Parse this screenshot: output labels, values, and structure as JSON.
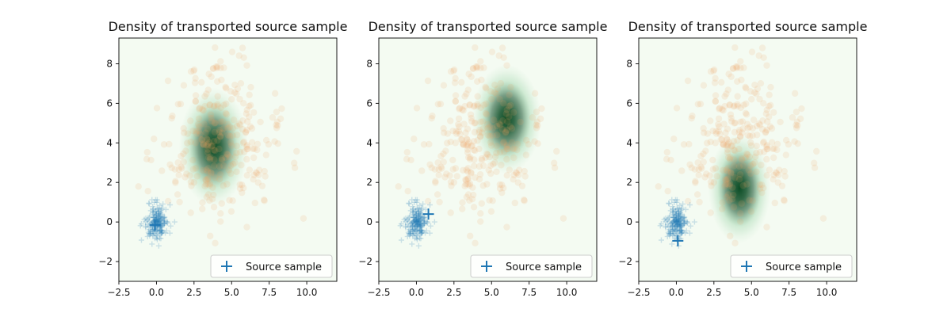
{
  "colors": {
    "background": "#ffffff",
    "plot_bg": "#f4fbf2",
    "density_dark": "#00441b",
    "target_points": "#f4a460",
    "source_points": "#1f77b4",
    "highlight_marker": "#1f77b4"
  },
  "chart_data": [
    {
      "type": "scatter",
      "title": "Density of transported source sample",
      "xlim": [
        -2.5,
        12
      ],
      "ylim": [
        -3,
        9.3
      ],
      "xticks": [
        -2.5,
        0.0,
        2.5,
        5.0,
        7.5,
        10.0
      ],
      "xtick_labels": [
        "−2.5",
        "0.0",
        "2.5",
        "5.0",
        "7.5",
        "10.0"
      ],
      "yticks": [
        -2,
        0,
        2,
        4,
        6,
        8
      ],
      "ytick_labels": [
        "−2",
        "0",
        "2",
        "4",
        "6",
        "8"
      ],
      "source_point": [
        -0.1,
        -0.15
      ],
      "density_center": [
        3.8,
        3.8
      ],
      "density_spread": [
        1.0,
        1.3
      ],
      "legend": {
        "label": "Source sample",
        "position": "lower-right"
      }
    },
    {
      "type": "scatter",
      "title": "Density of transported source sample",
      "xlim": [
        -2.5,
        12
      ],
      "ylim": [
        -3,
        9.3
      ],
      "xticks": [
        -2.5,
        0.0,
        2.5,
        5.0,
        7.5,
        10.0
      ],
      "xtick_labels": [
        "−2.5",
        "0.0",
        "2.5",
        "5.0",
        "7.5",
        "10.0"
      ],
      "yticks": [
        -2,
        0,
        2,
        4,
        6,
        8
      ],
      "ytick_labels": [
        "−2",
        "0",
        "2",
        "4",
        "6",
        "8"
      ],
      "source_point": [
        0.8,
        0.4
      ],
      "density_center": [
        6.0,
        5.2
      ],
      "density_spread": [
        1.0,
        1.2
      ],
      "legend": {
        "label": "Source sample",
        "position": "lower-right"
      }
    },
    {
      "type": "scatter",
      "title": "Density of transported source sample",
      "xlim": [
        -2.5,
        12
      ],
      "ylim": [
        -3,
        9.3
      ],
      "xticks": [
        -2.5,
        0.0,
        2.5,
        5.0,
        7.5,
        10.0
      ],
      "xtick_labels": [
        "−2.5",
        "0.0",
        "2.5",
        "5.0",
        "7.5",
        "10.0"
      ],
      "yticks": [
        -2,
        0,
        2,
        4,
        6,
        8
      ],
      "ytick_labels": [
        "−2",
        "0",
        "2",
        "4",
        "6",
        "8"
      ],
      "source_point": [
        0.1,
        -0.95
      ],
      "density_center": [
        4.2,
        1.7
      ],
      "density_spread": [
        0.9,
        1.2
      ],
      "legend": {
        "label": "Source sample",
        "position": "lower-right"
      }
    }
  ]
}
